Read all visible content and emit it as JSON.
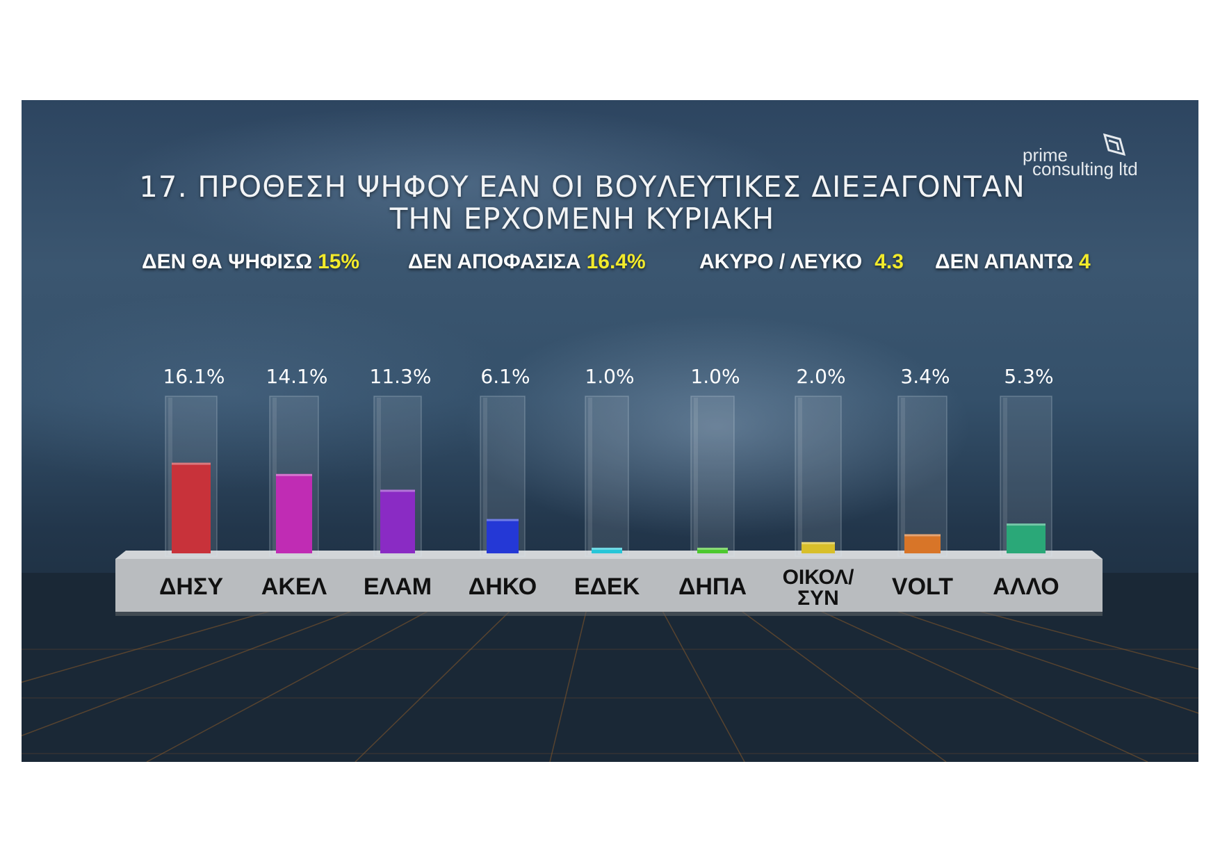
{
  "title_line1": "17. ΠΡΟΘΕΣΗ ΨΗΦΟΥ ΕΑΝ ΟΙ ΒΟΥΛΕΥΤΙΚΕΣ ΔΙΕΞΑΓΟΝΤΑΝ",
  "title_line2": "ΤΗΝ ΕΡΧΟΜΕΝΗ ΚΥΡΙΑΚΗ",
  "logo": {
    "line1": "prime",
    "line2": "consulting ltd",
    "icon": "prime-logo-icon"
  },
  "stats": [
    {
      "label": "ΔΕΝ ΘΑ ΨΗΦΙΣΩ",
      "value": "15%"
    },
    {
      "label": "ΔΕΝ ΑΠΟΦΑΣΙΣΑ",
      "value": "16.4%"
    },
    {
      "label": "ΑΚΥΡΟ / ΛΕΥΚΟ",
      "value": "4.3"
    },
    {
      "label": "ΔΕΝ ΑΠΑΝΤΩ",
      "value": "4"
    }
  ],
  "colors": {
    "value_highlight": "#f2ea2b",
    "platform": "#b9bcbf"
  },
  "chart_data": {
    "type": "bar",
    "title": "17. ΠΡΟΘΕΣΗ ΨΗΦΟΥ ΕΑΝ ΟΙ ΒΟΥΛΕΥΤΙΚΕΣ ΔΙΕΞΑΓΟΝΤΑΝ ΤΗΝ ΕΡΧΟΜΕΝΗ ΚΥΡΙΑΚΗ",
    "categories": [
      "ΔΗΣΥ",
      "ΑΚΕΛ",
      "ΕΛΑΜ",
      "ΔΗΚΟ",
      "ΕΔΕΚ",
      "ΔΗΠΑ",
      "ΟΙΚΟΛ/ ΣΥΝ",
      "VOLT",
      "ΑΛΛΟ"
    ],
    "category_lines": [
      [
        "ΔΗΣΥ"
      ],
      [
        "ΑΚΕΛ"
      ],
      [
        "ΕΛΑΜ"
      ],
      [
        "ΔΗΚΟ"
      ],
      [
        "ΕΔΕΚ"
      ],
      [
        "ΔΗΠΑ"
      ],
      [
        "ΟΙΚΟΛ/",
        "ΣΥΝ"
      ],
      [
        "VOLT"
      ],
      [
        "ΑΛΛΟ"
      ]
    ],
    "values": [
      16.1,
      14.1,
      11.3,
      6.1,
      1.0,
      1.0,
      2.0,
      3.4,
      5.3
    ],
    "value_labels": [
      "16.1%",
      "14.1%",
      "11.3%",
      "6.1%",
      "1.0%",
      "1.0%",
      "2.0%",
      "3.4%",
      "5.3%"
    ],
    "bar_colors": [
      "#c8323a",
      "#c02cb4",
      "#8a2bc4",
      "#2438d6",
      "#26c6d8",
      "#4cc92e",
      "#d8bf2a",
      "#d87528",
      "#2aa878"
    ],
    "xlabel": "",
    "ylabel": "",
    "grid": false
  }
}
